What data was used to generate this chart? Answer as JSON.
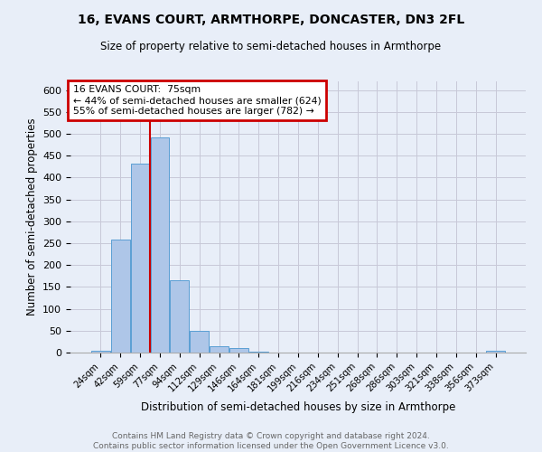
{
  "title_line1": "16, EVANS COURT, ARMTHORPE, DONCASTER, DN3 2FL",
  "title_line2": "Size of property relative to semi-detached houses in Armthorpe",
  "xlabel": "Distribution of semi-detached houses by size in Armthorpe",
  "ylabel": "Number of semi-detached properties",
  "categories": [
    "24sqm",
    "42sqm",
    "59sqm",
    "77sqm",
    "94sqm",
    "112sqm",
    "129sqm",
    "146sqm",
    "164sqm",
    "181sqm",
    "199sqm",
    "216sqm",
    "234sqm",
    "251sqm",
    "268sqm",
    "286sqm",
    "303sqm",
    "321sqm",
    "338sqm",
    "356sqm",
    "373sqm"
  ],
  "values": [
    5,
    258,
    432,
    491,
    165,
    50,
    14,
    11,
    3,
    0,
    0,
    0,
    0,
    0,
    0,
    0,
    0,
    0,
    0,
    0,
    5
  ],
  "bar_color": "#aec6e8",
  "bar_edge_color": "#5a9fd4",
  "annotation_text_line1": "16 EVANS COURT:  75sqm",
  "annotation_text_line2": "← 44% of semi-detached houses are smaller (624)",
  "annotation_text_line3": "55% of semi-detached houses are larger (782) →",
  "annotation_box_color": "#ffffff",
  "annotation_box_edge": "#cc0000",
  "vline_color": "#cc0000",
  "vline_x": 2.5,
  "ylim": [
    0,
    620
  ],
  "yticks": [
    0,
    50,
    100,
    150,
    200,
    250,
    300,
    350,
    400,
    450,
    500,
    550,
    600
  ],
  "background_color": "#e8eef8",
  "grid_color": "#c8c8d8",
  "footer_line1": "Contains HM Land Registry data © Crown copyright and database right 2024.",
  "footer_line2": "Contains public sector information licensed under the Open Government Licence v3.0."
}
